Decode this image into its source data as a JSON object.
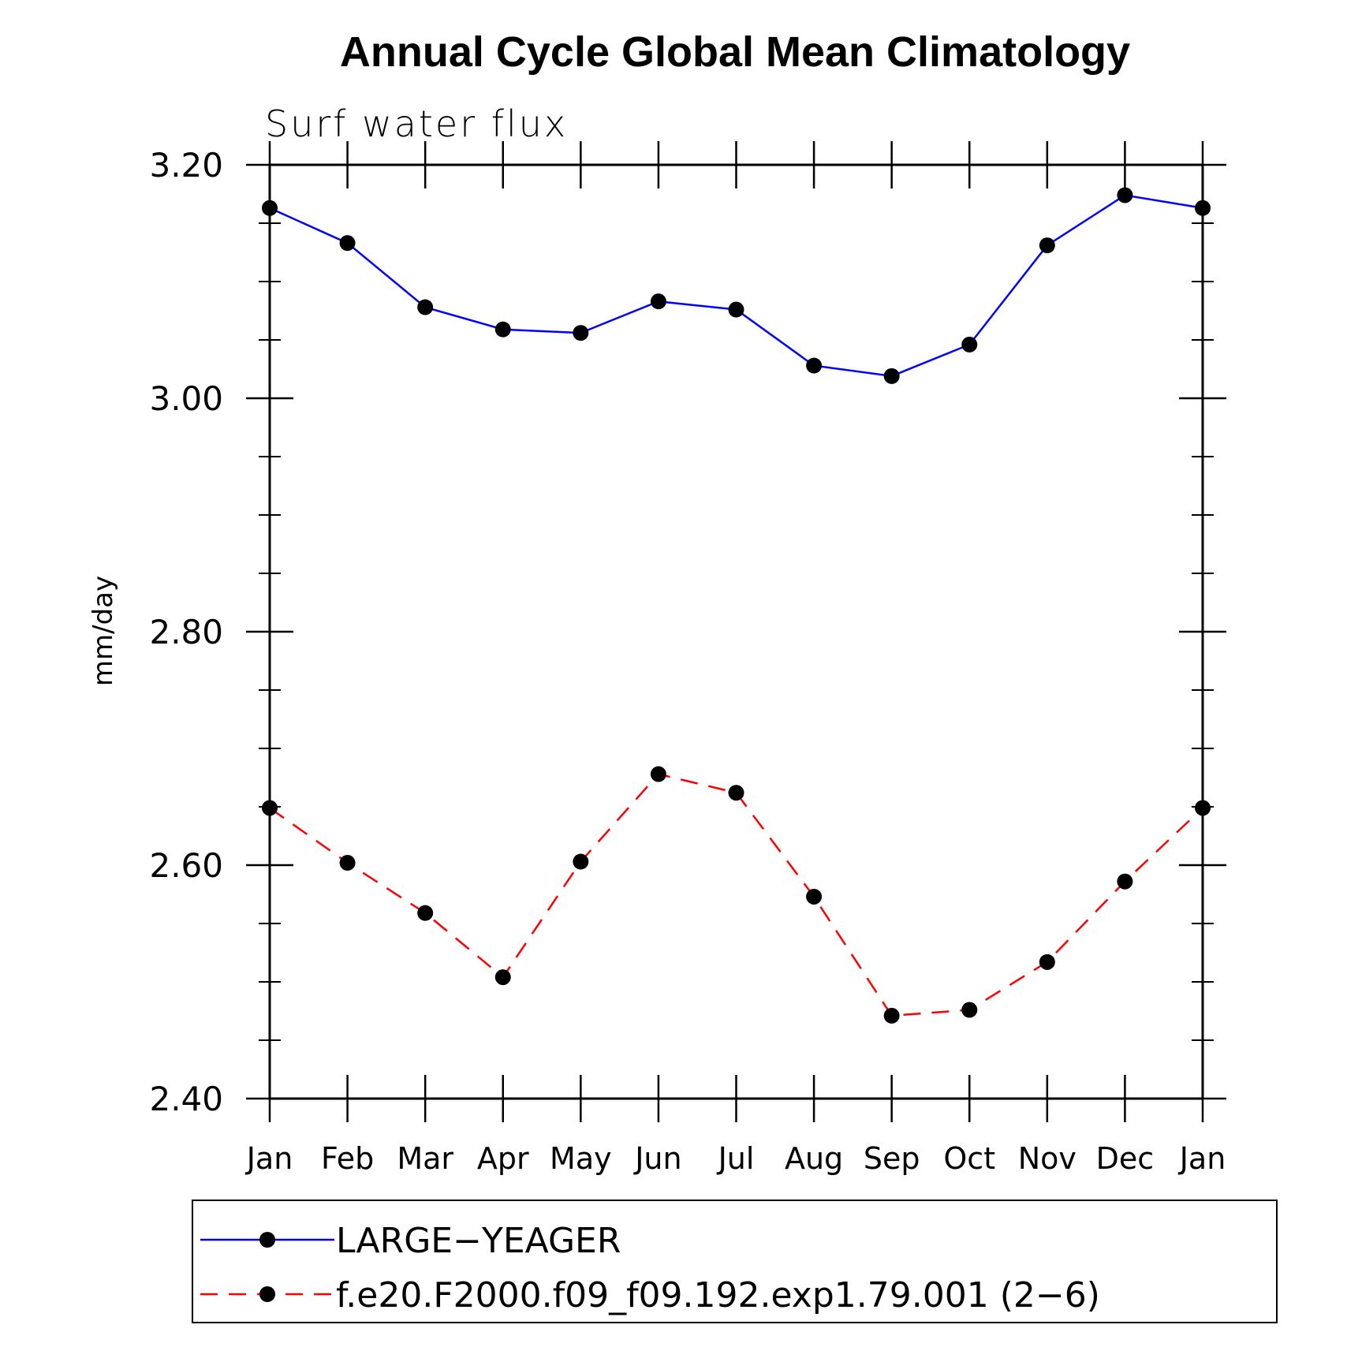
{
  "chart_data": {
    "type": "line",
    "title": "Annual Cycle Global Mean Climatology",
    "subtitle": "Surf water flux",
    "xlabel": "",
    "ylabel": "mm/day",
    "ylim": [
      2.4,
      3.2
    ],
    "yticks": [
      "2.40",
      "2.60",
      "2.80",
      "3.00",
      "3.20"
    ],
    "categories": [
      "Jan",
      "Feb",
      "Mar",
      "Apr",
      "May",
      "Jun",
      "Jul",
      "Aug",
      "Sep",
      "Oct",
      "Nov",
      "Dec",
      "Jan"
    ],
    "grid": false,
    "legend_position": "bottom",
    "series": [
      {
        "name": "LARGE−YEAGER",
        "color": "#0000ff",
        "line_style": "solid",
        "marker": "filled-circle",
        "values": [
          3.163,
          3.133,
          3.078,
          3.059,
          3.056,
          3.083,
          3.076,
          3.028,
          3.019,
          3.046,
          3.131,
          3.174,
          3.163
        ]
      },
      {
        "name": "f.e20.F2000.f09_f09.192.exp1.79.001 (2−6)",
        "color": "#ff0000",
        "line_style": "dashed",
        "marker": "filled-circle",
        "values": [
          2.649,
          2.602,
          2.559,
          2.504,
          2.603,
          2.678,
          2.662,
          2.573,
          2.471,
          2.476,
          2.517,
          2.586,
          2.649
        ]
      }
    ]
  }
}
